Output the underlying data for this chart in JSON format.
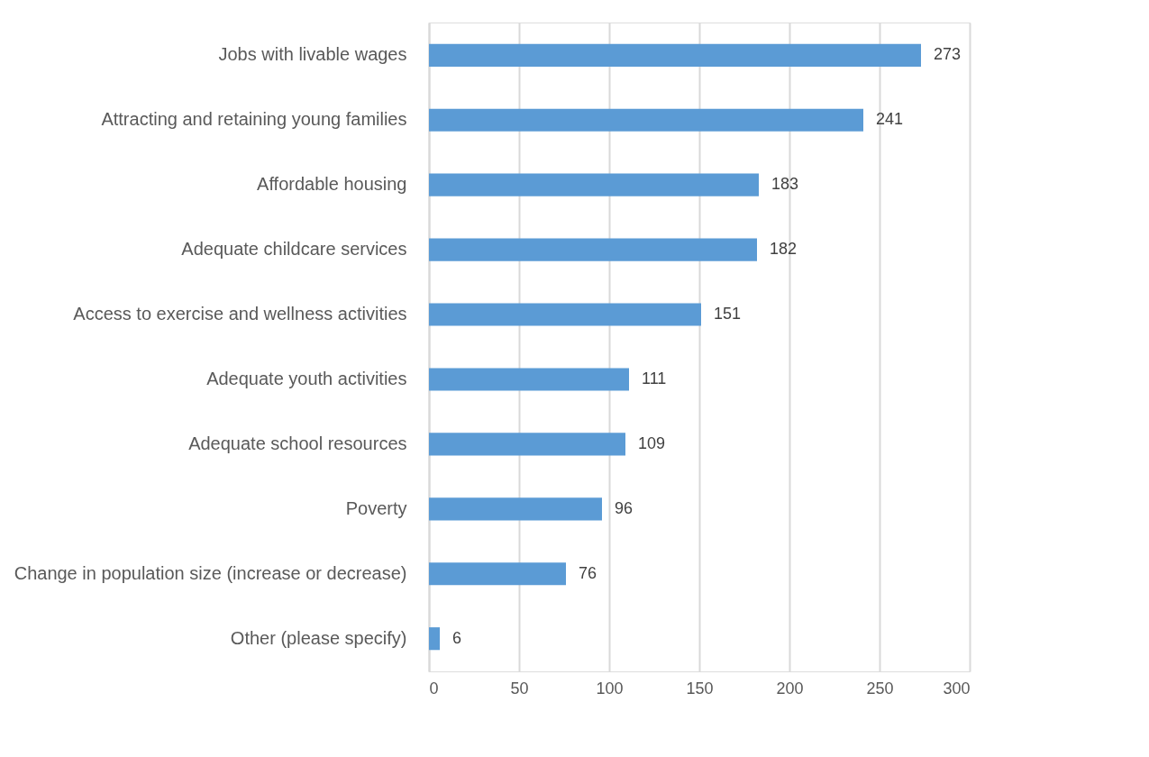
{
  "chart_data": {
    "type": "bar",
    "orientation": "horizontal",
    "categories": [
      "Jobs with livable wages",
      "Attracting and retaining young families",
      "Affordable housing",
      "Adequate childcare services",
      "Access to exercise and wellness activities",
      "Adequate youth activities",
      "Adequate school resources",
      "Poverty",
      "Change in population size (increase or decrease)",
      "Other (please specify)"
    ],
    "values": [
      273,
      241,
      183,
      182,
      151,
      111,
      109,
      96,
      76,
      6
    ],
    "color": "#5b9bd5",
    "xlim": [
      0,
      300
    ],
    "xticks": [
      0,
      50,
      100,
      150,
      200,
      250,
      300
    ],
    "grid": "x",
    "data_labels": true
  }
}
